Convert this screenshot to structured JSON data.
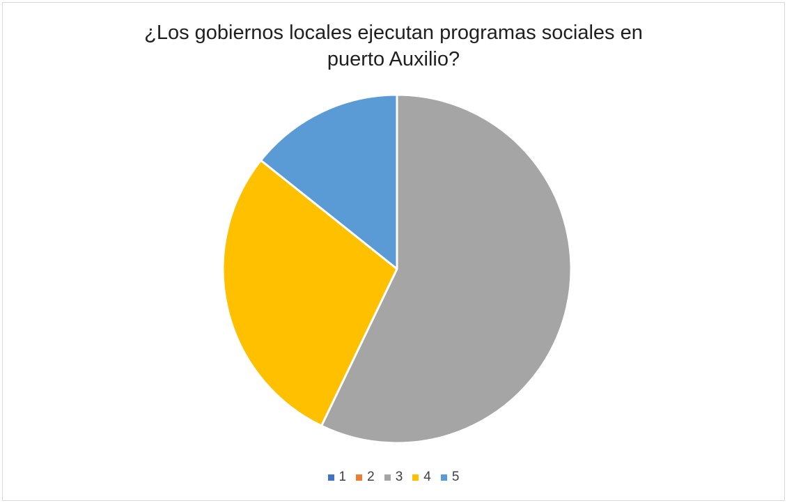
{
  "chart_data": {
    "type": "pie",
    "title_lines": [
      "¿Los gobiernos locales ejecutan programas sociales en",
      "puerto Auxilio?"
    ],
    "categories": [
      "1",
      "2",
      "3",
      "4",
      "5"
    ],
    "values": [
      0,
      0,
      4,
      2,
      1
    ],
    "colors": [
      "#4472c4",
      "#ed7d31",
      "#a5a5a5",
      "#ffc000",
      "#5b9bd5"
    ],
    "start_angle_deg": 0,
    "direction": "clockwise",
    "legend_position": "bottom",
    "border_color": "#ffffff"
  }
}
